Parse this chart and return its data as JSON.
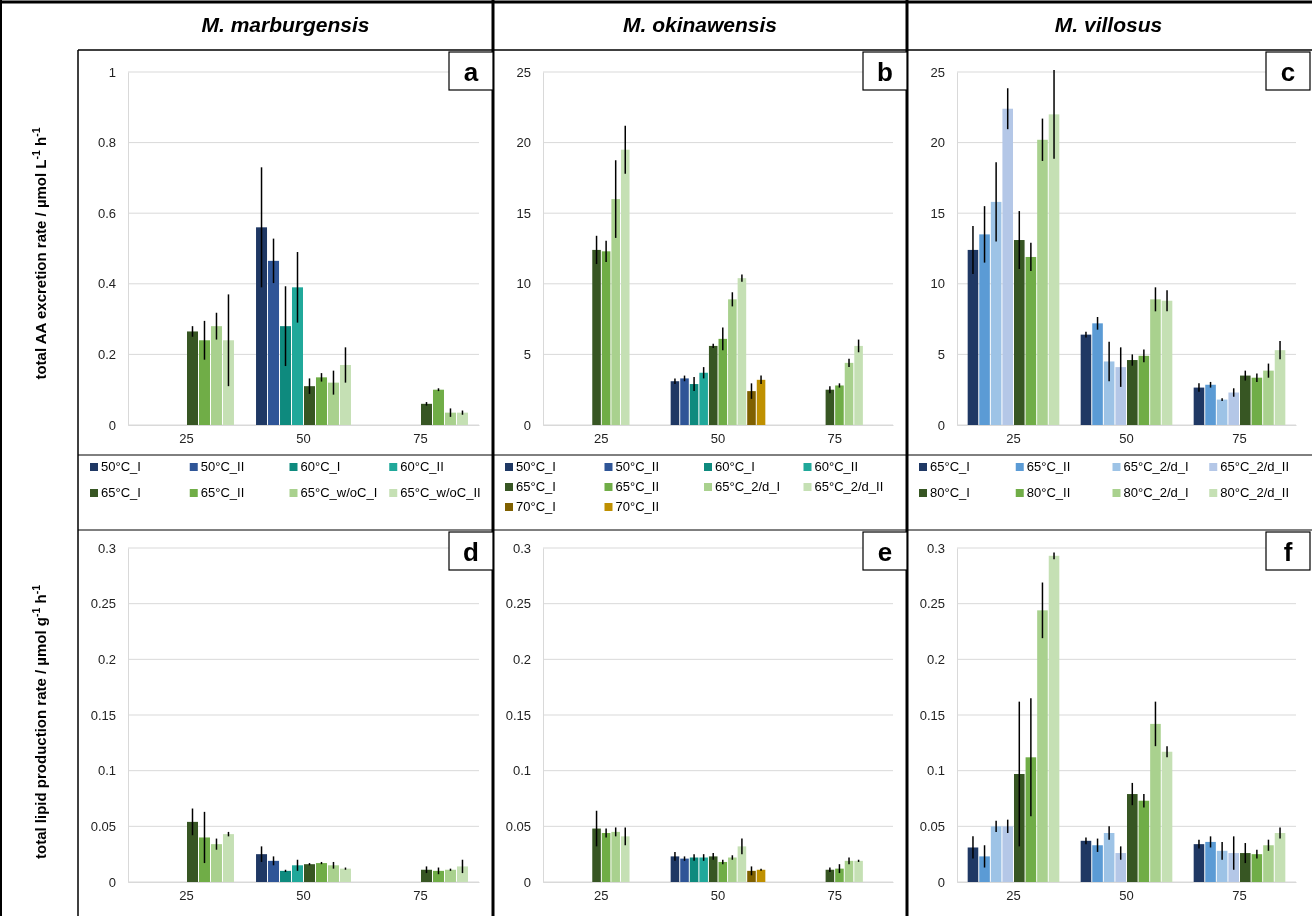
{
  "chart_data": [
    {
      "type": "bar",
      "title": "M. marburgensis",
      "ylabel": "total AA excretion rate / µmol L$^{-1}$ h$^{-1}$",
      "categories": [
        "25",
        "50",
        "75"
      ],
      "ylim": [
        0,
        1
      ],
      "yticks": [
        0,
        0.2,
        0.4,
        0.6,
        0.8,
        1
      ],
      "grid": "y",
      "legend": "bottom",
      "annotations": [
        "a"
      ],
      "series": [
        {
          "name": "50°C_I",
          "color": "#1f3864",
          "values": [
            null,
            0.56,
            null
          ],
          "errors": [
            null,
            0.17,
            null
          ]
        },
        {
          "name": "50°C_II",
          "color": "#2f5597",
          "values": [
            null,
            0.465,
            null
          ],
          "errors": [
            null,
            0.063,
            null
          ]
        },
        {
          "name": "60°C_I",
          "color": "#0e8a7e",
          "values": [
            null,
            0.28,
            null
          ],
          "errors": [
            null,
            0.113,
            null
          ]
        },
        {
          "name": "60°C_II",
          "color": "#20a89a",
          "values": [
            null,
            0.39,
            null
          ],
          "errors": [
            null,
            0.1,
            null
          ]
        },
        {
          "name": "65°C_I",
          "color": "#375623",
          "values": [
            0.265,
            0.11,
            0.06
          ],
          "errors": [
            0.015,
            0.022,
            0.005
          ]
        },
        {
          "name": "65°C_II",
          "color": "#70ad47",
          "values": [
            0.24,
            0.135,
            0.1
          ],
          "errors": [
            0.055,
            0.012,
            0.004
          ]
        },
        {
          "name": "65°C_w/oC_I",
          "color": "#a9d18e",
          "values": [
            0.28,
            0.12,
            0.035
          ],
          "errors": [
            0.038,
            0.034,
            0.012
          ]
        },
        {
          "name": "65°C_w/oC_II",
          "color": "#c5e0b4",
          "values": [
            0.24,
            0.17,
            0.035
          ],
          "errors": [
            0.13,
            0.05,
            0.006
          ]
        }
      ]
    },
    {
      "type": "bar",
      "title": "M. okinawensis",
      "categories": [
        "25",
        "50",
        "75"
      ],
      "ylim": [
        0,
        25
      ],
      "yticks": [
        0,
        5,
        10,
        15,
        20,
        25
      ],
      "grid": "y",
      "legend": "bottom",
      "annotations": [
        "b"
      ],
      "series": [
        {
          "name": "50°C_I",
          "color": "#1f3864",
          "values": [
            null,
            3.1,
            null
          ],
          "errors": [
            null,
            0.2,
            null
          ]
        },
        {
          "name": "50°C_II",
          "color": "#2f5597",
          "values": [
            null,
            3.3,
            null
          ],
          "errors": [
            null,
            0.2,
            null
          ]
        },
        {
          "name": "60°C_I",
          "color": "#0e8a7e",
          "values": [
            null,
            2.9,
            null
          ],
          "errors": [
            null,
            0.5,
            null
          ]
        },
        {
          "name": "60°C_II",
          "color": "#20a89a",
          "values": [
            null,
            3.7,
            null
          ],
          "errors": [
            null,
            0.4,
            null
          ]
        },
        {
          "name": "65°C_I",
          "color": "#375623",
          "values": [
            12.4,
            5.6,
            2.5
          ],
          "errors": [
            1.0,
            0.15,
            0.25
          ]
        },
        {
          "name": "65°C_II",
          "color": "#70ad47",
          "values": [
            12.3,
            6.1,
            2.8
          ],
          "errors": [
            0.75,
            0.8,
            0.15
          ]
        },
        {
          "name": "65°C_2/d_I",
          "color": "#a9d18e",
          "values": [
            16,
            8.9,
            4.4
          ],
          "errors": [
            2.75,
            0.5,
            0.3
          ]
        },
        {
          "name": "65°C_2/d_II",
          "color": "#c5e0b4",
          "values": [
            19.5,
            10.4,
            5.6
          ],
          "errors": [
            1.7,
            0.25,
            0.45
          ]
        },
        {
          "name": "70°C_I",
          "color": "#7f6000",
          "values": [
            null,
            2.4,
            null
          ],
          "errors": [
            null,
            0.55,
            null
          ]
        },
        {
          "name": "70°C_II",
          "color": "#bf9000",
          "values": [
            null,
            3.2,
            null
          ],
          "errors": [
            null,
            0.3,
            null
          ]
        }
      ]
    },
    {
      "type": "bar",
      "title": "M. villosus",
      "categories": [
        "25",
        "50",
        "75"
      ],
      "ylim": [
        0,
        25
      ],
      "yticks": [
        0,
        5,
        10,
        15,
        20,
        25
      ],
      "grid": "y",
      "legend": "bottom",
      "annotations": [
        "c"
      ],
      "series": [
        {
          "name": "65°C_I",
          "color": "#1f3864",
          "values": [
            12.4,
            6.4,
            2.65
          ],
          "errors": [
            1.7,
            0.2,
            0.3
          ]
        },
        {
          "name": "65°C_II",
          "color": "#5b9bd5",
          "values": [
            13.5,
            7.2,
            2.85
          ],
          "errors": [
            2.0,
            0.45,
            0.2
          ]
        },
        {
          "name": "65°C_2/d_I",
          "color": "#9dc3e6",
          "values": [
            15.8,
            4.5,
            1.8
          ],
          "errors": [
            2.8,
            1.4,
            0.1
          ]
        },
        {
          "name": "65°C_2/d_II",
          "color": "#b4c7e7",
          "values": [
            22.4,
            4.1,
            2.3
          ],
          "errors": [
            1.45,
            1.4,
            0.3
          ]
        },
        {
          "name": "80°C_I",
          "color": "#375623",
          "values": [
            13.1,
            4.6,
            3.5
          ],
          "errors": [
            2.05,
            0.4,
            0.35
          ]
        },
        {
          "name": "80°C_II",
          "color": "#70ad47",
          "values": [
            11.9,
            4.9,
            3.35
          ],
          "errors": [
            1.0,
            0.45,
            0.3
          ]
        },
        {
          "name": "80°C_2/d_I",
          "color": "#a9d18e",
          "values": [
            20.2,
            8.9,
            3.85
          ],
          "errors": [
            1.5,
            0.85,
            0.5
          ]
        },
        {
          "name": "80°C_2/d_II",
          "color": "#c5e0b4",
          "values": [
            22,
            8.8,
            5.3
          ],
          "errors": [
            3.15,
            0.75,
            0.65
          ]
        }
      ]
    },
    {
      "type": "bar",
      "ylabel": "total lipid production rate / µmol g$^{-1}$ h$^{-1}$",
      "categories": [
        "25",
        "50",
        "75"
      ],
      "ylim": [
        0,
        0.3
      ],
      "yticks": [
        0,
        0.05,
        0.1,
        0.15,
        0.2,
        0.25,
        0.3
      ],
      "grid": "y",
      "annotations": [
        "d"
      ],
      "series": [
        {
          "color": "#1f3864",
          "values": [
            null,
            0.025,
            null
          ],
          "errors": [
            null,
            0.007,
            null
          ]
        },
        {
          "color": "#2f5597",
          "values": [
            null,
            0.019,
            null
          ],
          "errors": [
            null,
            0.004,
            null
          ]
        },
        {
          "color": "#0e8a7e",
          "values": [
            null,
            0.01,
            null
          ],
          "errors": [
            null,
            0.001,
            null
          ]
        },
        {
          "color": "#20a89a",
          "values": [
            null,
            0.015,
            null
          ],
          "errors": [
            null,
            0.005,
            null
          ]
        },
        {
          "color": "#375623",
          "values": [
            0.054,
            0.016,
            0.011
          ],
          "errors": [
            0.012,
            0.001,
            0.003
          ]
        },
        {
          "color": "#70ad47",
          "values": [
            0.04,
            0.017,
            0.01
          ],
          "errors": [
            0.023,
            0.001,
            0.003
          ]
        },
        {
          "color": "#a9d18e",
          "values": [
            0.034,
            0.015,
            0.011
          ],
          "errors": [
            0.005,
            0.003,
            0.001
          ]
        },
        {
          "color": "#c5e0b4",
          "values": [
            0.043,
            0.012,
            0.014
          ],
          "errors": [
            0.002,
            0.001,
            0.006
          ]
        }
      ]
    },
    {
      "type": "bar",
      "categories": [
        "25",
        "50",
        "75"
      ],
      "ylim": [
        0,
        0.3
      ],
      "yticks": [
        0,
        0.05,
        0.1,
        0.15,
        0.2,
        0.25,
        0.3
      ],
      "grid": "y",
      "annotations": [
        "e"
      ],
      "series": [
        {
          "color": "#1f3864",
          "values": [
            null,
            0.023,
            null
          ],
          "errors": [
            null,
            0.004,
            null
          ]
        },
        {
          "color": "#2f5597",
          "values": [
            null,
            0.021,
            null
          ],
          "errors": [
            null,
            0.002,
            null
          ]
        },
        {
          "color": "#0e8a7e",
          "values": [
            null,
            0.022,
            null
          ],
          "errors": [
            null,
            0.003,
            null
          ]
        },
        {
          "color": "#20a89a",
          "values": [
            null,
            0.022,
            null
          ],
          "errors": [
            null,
            0.003,
            null
          ]
        },
        {
          "color": "#375623",
          "values": [
            0.048,
            0.023,
            0.011
          ],
          "errors": [
            0.016,
            0.003,
            0.002
          ]
        },
        {
          "color": "#70ad47",
          "values": [
            0.044,
            0.018,
            0.012
          ],
          "errors": [
            0.004,
            0.002,
            0.004
          ]
        },
        {
          "color": "#a9d18e",
          "values": [
            0.045,
            0.022,
            0.019
          ],
          "errors": [
            0.004,
            0.002,
            0.003
          ]
        },
        {
          "color": "#c5e0b4",
          "values": [
            0.041,
            0.032,
            0.019
          ],
          "errors": [
            0.008,
            0.007,
            0.001
          ]
        },
        {
          "color": "#7f6000",
          "values": [
            null,
            0.01,
            null
          ],
          "errors": [
            null,
            0.004,
            null
          ]
        },
        {
          "color": "#bf9000",
          "values": [
            null,
            0.011,
            null
          ],
          "errors": [
            null,
            0.001,
            null
          ]
        }
      ]
    },
    {
      "type": "bar",
      "categories": [
        "25",
        "50",
        "75"
      ],
      "ylim": [
        0,
        0.3
      ],
      "yticks": [
        0,
        0.05,
        0.1,
        0.15,
        0.2,
        0.25,
        0.3
      ],
      "grid": "y",
      "annotations": [
        "f"
      ],
      "series": [
        {
          "color": "#1f3864",
          "values": [
            0.031,
            0.037,
            0.034
          ],
          "errors": [
            0.01,
            0.003,
            0.004
          ]
        },
        {
          "color": "#5b9bd5",
          "values": [
            0.023,
            0.033,
            0.036
          ],
          "errors": [
            0.01,
            0.006,
            0.005
          ]
        },
        {
          "color": "#9dc3e6",
          "values": [
            0.05,
            0.044,
            0.028
          ],
          "errors": [
            0.005,
            0.006,
            0.008
          ]
        },
        {
          "color": "#b4c7e7",
          "values": [
            0.05,
            0.026,
            0.026
          ],
          "errors": [
            0.006,
            0.006,
            0.015
          ]
        },
        {
          "color": "#375623",
          "values": [
            0.097,
            0.079,
            0.026
          ],
          "errors": [
            0.065,
            0.01,
            0.009
          ]
        },
        {
          "color": "#70ad47",
          "values": [
            0.112,
            0.073,
            0.025
          ],
          "errors": [
            0.053,
            0.006,
            0.004
          ]
        },
        {
          "color": "#a9d18e",
          "values": [
            0.244,
            0.142,
            0.033
          ],
          "errors": [
            0.025,
            0.02,
            0.005
          ]
        },
        {
          "color": "#c5e0b4",
          "values": [
            0.293,
            0.117,
            0.044
          ],
          "errors": [
            0.003,
            0.005,
            0.005
          ]
        }
      ]
    }
  ]
}
